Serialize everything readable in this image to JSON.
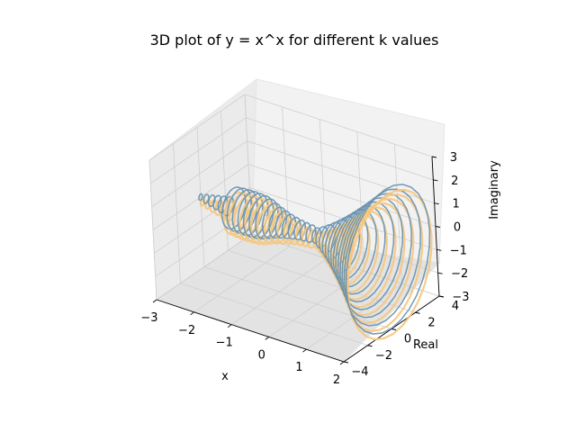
{
  "chart_data": {
    "type": "surface-wireframe-3d",
    "title": "3D plot of y = x^x for different k values",
    "xlabel": "x",
    "ylabel": "Real",
    "zlabel": "Imaginary",
    "xlim": [
      -3,
      2
    ],
    "ylim": [
      -4,
      4
    ],
    "zlim": [
      -3,
      3
    ],
    "xticks": [
      -3,
      -2,
      -1,
      0,
      1,
      2
    ],
    "yticks": [
      -4,
      -2,
      0,
      2,
      4
    ],
    "zticks": [
      -3,
      -2,
      -1,
      0,
      1,
      2,
      3
    ],
    "xtick_labels": [
      "−3",
      "−2",
      "−1",
      "0",
      "1",
      "2"
    ],
    "ytick_labels": [
      "−4",
      "−2",
      "0",
      "2",
      "4"
    ],
    "ztick_labels": [
      "−3",
      "−2",
      "−1",
      "0",
      "1",
      "2",
      "3"
    ],
    "grid": true,
    "series": [
      {
        "color": "#f5c77e"
      },
      {
        "color": "#6a93b0"
      }
    ]
  }
}
